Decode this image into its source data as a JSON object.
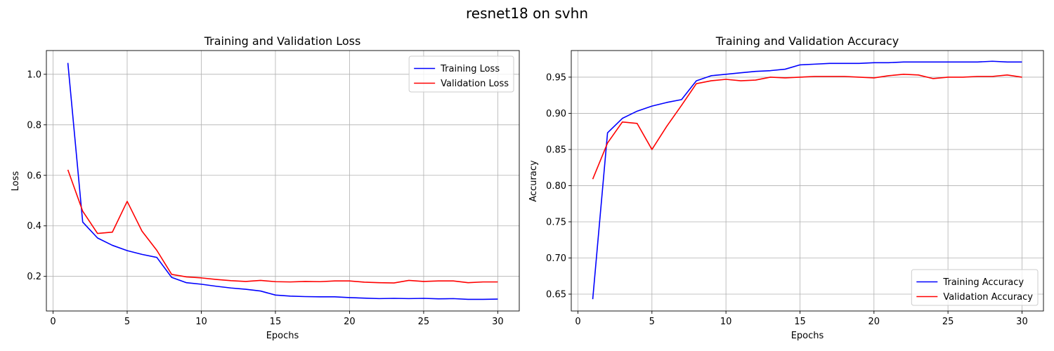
{
  "figure": {
    "title": "resnet18 on svhn"
  },
  "chart_data": [
    {
      "type": "line",
      "title": "Training and Validation Loss",
      "xlabel": "Epochs",
      "ylabel": "Loss",
      "xlim": [
        -0.45,
        31.45
      ],
      "ylim": [
        0.063,
        1.094
      ],
      "xticks": [
        0,
        5,
        10,
        15,
        20,
        25,
        30
      ],
      "yticks": [
        0.2,
        0.4,
        0.6,
        0.8,
        1.0
      ],
      "ytick_labels": [
        "0.2",
        "0.4",
        "0.6",
        "0.8",
        "1.0"
      ],
      "grid": true,
      "legend_position": "upper right",
      "x": [
        1,
        2,
        3,
        4,
        5,
        6,
        7,
        8,
        9,
        10,
        11,
        12,
        13,
        14,
        15,
        16,
        17,
        18,
        19,
        20,
        21,
        22,
        23,
        24,
        25,
        26,
        27,
        28,
        29,
        30
      ],
      "series": [
        {
          "name": "Training Loss",
          "color": "#0000ff",
          "values": [
            1.045,
            0.415,
            0.352,
            0.323,
            0.302,
            0.287,
            0.275,
            0.196,
            0.175,
            0.169,
            0.161,
            0.154,
            0.149,
            0.142,
            0.126,
            0.122,
            0.12,
            0.119,
            0.119,
            0.116,
            0.114,
            0.112,
            0.113,
            0.112,
            0.113,
            0.111,
            0.112,
            0.109,
            0.109,
            0.11
          ]
        },
        {
          "name": "Validation Loss",
          "color": "#ff0000",
          "values": [
            0.622,
            0.458,
            0.37,
            0.375,
            0.497,
            0.379,
            0.303,
            0.208,
            0.198,
            0.194,
            0.188,
            0.183,
            0.18,
            0.184,
            0.179,
            0.178,
            0.18,
            0.179,
            0.182,
            0.182,
            0.177,
            0.175,
            0.174,
            0.184,
            0.18,
            0.182,
            0.182,
            0.175,
            0.178,
            0.178
          ]
        }
      ]
    },
    {
      "type": "line",
      "title": "Training and Validation Accuracy",
      "xlabel": "Epochs",
      "ylabel": "Accuracy",
      "xlim": [
        -0.45,
        31.45
      ],
      "ylim": [
        0.6267,
        0.9868
      ],
      "xticks": [
        0,
        5,
        10,
        15,
        20,
        25,
        30
      ],
      "yticks": [
        0.65,
        0.7,
        0.75,
        0.8,
        0.85,
        0.9,
        0.95
      ],
      "ytick_labels": [
        "0.65",
        "0.70",
        "0.75",
        "0.80",
        "0.85",
        "0.90",
        "0.95"
      ],
      "grid": true,
      "legend_position": "lower right",
      "x": [
        1,
        2,
        3,
        4,
        5,
        6,
        7,
        8,
        9,
        10,
        11,
        12,
        13,
        14,
        15,
        16,
        17,
        18,
        19,
        20,
        21,
        22,
        23,
        24,
        25,
        26,
        27,
        28,
        29,
        30
      ],
      "series": [
        {
          "name": "Training Accuracy",
          "color": "#0000ff",
          "values": [
            0.643,
            0.873,
            0.893,
            0.903,
            0.91,
            0.915,
            0.919,
            0.945,
            0.952,
            0.954,
            0.956,
            0.958,
            0.959,
            0.961,
            0.967,
            0.968,
            0.969,
            0.969,
            0.969,
            0.97,
            0.97,
            0.971,
            0.971,
            0.971,
            0.971,
            0.971,
            0.971,
            0.972,
            0.971,
            0.971
          ]
        },
        {
          "name": "Validation Accuracy",
          "color": "#ff0000",
          "values": [
            0.809,
            0.859,
            0.888,
            0.886,
            0.85,
            0.882,
            0.911,
            0.941,
            0.945,
            0.947,
            0.945,
            0.946,
            0.95,
            0.949,
            0.95,
            0.951,
            0.951,
            0.951,
            0.95,
            0.949,
            0.952,
            0.954,
            0.953,
            0.948,
            0.95,
            0.95,
            0.951,
            0.951,
            0.953,
            0.95
          ]
        }
      ]
    }
  ]
}
